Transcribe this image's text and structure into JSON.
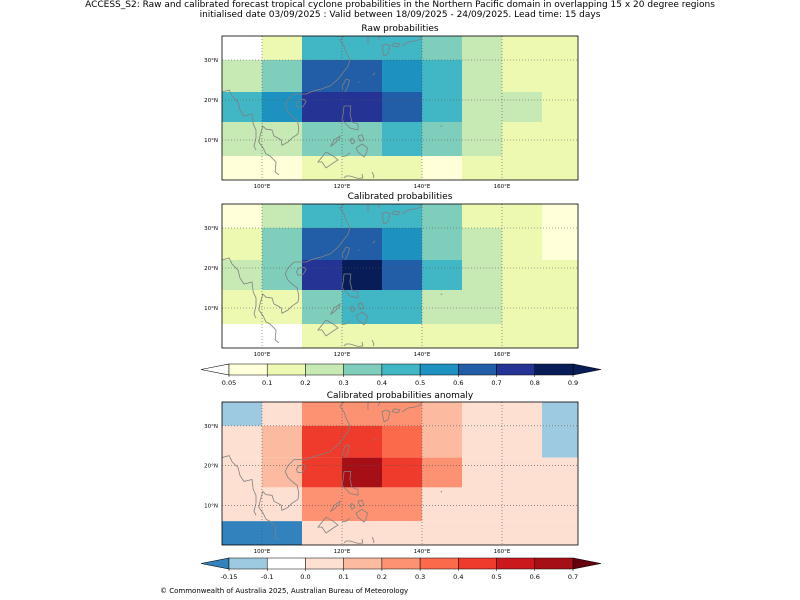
{
  "title_line1": "ACCESS_S2: Raw and calibrated forecast tropical cyclone probabilities in the Northern Pacific domain in overlapping 15 x 20 degree regions",
  "title_line2": "initialised date 03/09/2025 :  Valid between 18/09/2025 - 24/09/2025. Lead time: 15 days",
  "footer": "© Commonwealth of Australia 2025, Australian Bureau of Meteorology",
  "chart_data": [
    {
      "type": "heatmap",
      "title": "Raw probabilities",
      "xlim": [
        90,
        179
      ],
      "ylim": [
        0,
        36
      ],
      "x_ticks": [
        "100°E",
        "120°E",
        "140°E",
        "160°E"
      ],
      "y_ticks": [
        "10°N",
        "20°N",
        "30°N"
      ],
      "cells": [
        {
          "x0": 90,
          "x1": 100,
          "y0": 30,
          "y1": 36,
          "v": 0.0
        },
        {
          "x0": 100,
          "x1": 110,
          "y0": 30,
          "y1": 36,
          "v": 0.15
        },
        {
          "x0": 110,
          "x1": 130,
          "y0": 30,
          "y1": 36,
          "v": 0.45
        },
        {
          "x0": 130,
          "x1": 140,
          "y0": 30,
          "y1": 36,
          "v": 0.45
        },
        {
          "x0": 140,
          "x1": 150,
          "y0": 30,
          "y1": 36,
          "v": 0.35
        },
        {
          "x0": 150,
          "x1": 160,
          "y0": 30,
          "y1": 36,
          "v": 0.25
        },
        {
          "x0": 160,
          "x1": 179,
          "y0": 30,
          "y1": 36,
          "v": 0.15
        },
        {
          "x0": 90,
          "x1": 100,
          "y0": 22,
          "y1": 30,
          "v": 0.25
        },
        {
          "x0": 100,
          "x1": 110,
          "y0": 22,
          "y1": 30,
          "v": 0.35
        },
        {
          "x0": 110,
          "x1": 130,
          "y0": 22,
          "y1": 30,
          "v": 0.65
        },
        {
          "x0": 130,
          "x1": 140,
          "y0": 22,
          "y1": 30,
          "v": 0.55
        },
        {
          "x0": 140,
          "x1": 150,
          "y0": 22,
          "y1": 30,
          "v": 0.45
        },
        {
          "x0": 150,
          "x1": 160,
          "y0": 22,
          "y1": 30,
          "v": 0.25
        },
        {
          "x0": 160,
          "x1": 179,
          "y0": 22,
          "y1": 30,
          "v": 0.15
        },
        {
          "x0": 90,
          "x1": 100,
          "y0": 14.5,
          "y1": 22,
          "v": 0.45
        },
        {
          "x0": 100,
          "x1": 110,
          "y0": 14.5,
          "y1": 22,
          "v": 0.55
        },
        {
          "x0": 110,
          "x1": 130,
          "y0": 14.5,
          "y1": 22,
          "v": 0.75
        },
        {
          "x0": 130,
          "x1": 140,
          "y0": 14.5,
          "y1": 22,
          "v": 0.65
        },
        {
          "x0": 140,
          "x1": 150,
          "y0": 14.5,
          "y1": 22,
          "v": 0.45
        },
        {
          "x0": 150,
          "x1": 160,
          "y0": 14.5,
          "y1": 22,
          "v": 0.25
        },
        {
          "x0": 160,
          "x1": 170,
          "y0": 14.5,
          "y1": 22,
          "v": 0.25
        },
        {
          "x0": 170,
          "x1": 179,
          "y0": 14.5,
          "y1": 22,
          "v": 0.15
        },
        {
          "x0": 90,
          "x1": 110,
          "y0": 6,
          "y1": 14.5,
          "v": 0.25
        },
        {
          "x0": 110,
          "x1": 130,
          "y0": 6,
          "y1": 14.5,
          "v": 0.35
        },
        {
          "x0": 130,
          "x1": 140,
          "y0": 6,
          "y1": 14.5,
          "v": 0.45
        },
        {
          "x0": 140,
          "x1": 150,
          "y0": 6,
          "y1": 14.5,
          "v": 0.35
        },
        {
          "x0": 150,
          "x1": 160,
          "y0": 6,
          "y1": 14.5,
          "v": 0.25
        },
        {
          "x0": 160,
          "x1": 179,
          "y0": 6,
          "y1": 14.5,
          "v": 0.15
        },
        {
          "x0": 90,
          "x1": 110,
          "y0": 0,
          "y1": 6,
          "v": 0.07
        },
        {
          "x0": 110,
          "x1": 140,
          "y0": 0,
          "y1": 6,
          "v": 0.15
        },
        {
          "x0": 140,
          "x1": 150,
          "y0": 0,
          "y1": 6,
          "v": 0.07
        },
        {
          "x0": 150,
          "x1": 179,
          "y0": 0,
          "y1": 6,
          "v": 0.15
        }
      ]
    },
    {
      "type": "heatmap",
      "title": "Calibrated probabilities",
      "xlim": [
        90,
        179
      ],
      "ylim": [
        0,
        36
      ],
      "x_ticks": [
        "100°E",
        "120°E",
        "140°E",
        "160°E"
      ],
      "y_ticks": [
        "10°N",
        "20°N",
        "30°N"
      ],
      "cells": [
        {
          "x0": 90,
          "x1": 100,
          "y0": 30,
          "y1": 36,
          "v": 0.07
        },
        {
          "x0": 100,
          "x1": 110,
          "y0": 30,
          "y1": 36,
          "v": 0.25
        },
        {
          "x0": 110,
          "x1": 140,
          "y0": 30,
          "y1": 36,
          "v": 0.45
        },
        {
          "x0": 140,
          "x1": 150,
          "y0": 30,
          "y1": 36,
          "v": 0.35
        },
        {
          "x0": 150,
          "x1": 170,
          "y0": 30,
          "y1": 36,
          "v": 0.15
        },
        {
          "x0": 170,
          "x1": 179,
          "y0": 30,
          "y1": 36,
          "v": 0.07
        },
        {
          "x0": 90,
          "x1": 100,
          "y0": 22,
          "y1": 30,
          "v": 0.15
        },
        {
          "x0": 100,
          "x1": 110,
          "y0": 22,
          "y1": 30,
          "v": 0.35
        },
        {
          "x0": 110,
          "x1": 130,
          "y0": 22,
          "y1": 30,
          "v": 0.65
        },
        {
          "x0": 130,
          "x1": 140,
          "y0": 22,
          "y1": 30,
          "v": 0.55
        },
        {
          "x0": 140,
          "x1": 150,
          "y0": 22,
          "y1": 30,
          "v": 0.35
        },
        {
          "x0": 150,
          "x1": 160,
          "y0": 22,
          "y1": 30,
          "v": 0.25
        },
        {
          "x0": 160,
          "x1": 170,
          "y0": 22,
          "y1": 30,
          "v": 0.15
        },
        {
          "x0": 170,
          "x1": 179,
          "y0": 22,
          "y1": 30,
          "v": 0.07
        },
        {
          "x0": 90,
          "x1": 100,
          "y0": 14.5,
          "y1": 22,
          "v": 0.25
        },
        {
          "x0": 100,
          "x1": 110,
          "y0": 14.5,
          "y1": 22,
          "v": 0.35
        },
        {
          "x0": 110,
          "x1": 120,
          "y0": 14.5,
          "y1": 22,
          "v": 0.75
        },
        {
          "x0": 120,
          "x1": 130,
          "y0": 14.5,
          "y1": 22,
          "v": 0.85
        },
        {
          "x0": 130,
          "x1": 140,
          "y0": 14.5,
          "y1": 22,
          "v": 0.65
        },
        {
          "x0": 140,
          "x1": 150,
          "y0": 14.5,
          "y1": 22,
          "v": 0.45
        },
        {
          "x0": 150,
          "x1": 160,
          "y0": 14.5,
          "y1": 22,
          "v": 0.25
        },
        {
          "x0": 160,
          "x1": 179,
          "y0": 14.5,
          "y1": 22,
          "v": 0.15
        },
        {
          "x0": 90,
          "x1": 110,
          "y0": 6,
          "y1": 14.5,
          "v": 0.15
        },
        {
          "x0": 110,
          "x1": 120,
          "y0": 6,
          "y1": 14.5,
          "v": 0.35
        },
        {
          "x0": 120,
          "x1": 140,
          "y0": 6,
          "y1": 14.5,
          "v": 0.45
        },
        {
          "x0": 140,
          "x1": 160,
          "y0": 6,
          "y1": 14.5,
          "v": 0.25
        },
        {
          "x0": 160,
          "x1": 179,
          "y0": 6,
          "y1": 14.5,
          "v": 0.15
        },
        {
          "x0": 90,
          "x1": 110,
          "y0": 0,
          "y1": 6,
          "v": 0.0
        },
        {
          "x0": 110,
          "x1": 179,
          "y0": 0,
          "y1": 6,
          "v": 0.15
        }
      ],
      "colorbar": {
        "ticks": [
          "0.05",
          "0.1",
          "0.2",
          "0.3",
          "0.4",
          "0.5",
          "0.6",
          "0.7",
          "0.8",
          "0.9"
        ],
        "colors": [
          "#ffffd9",
          "#edf8b1",
          "#c7e9b4",
          "#7fcdbb",
          "#41b6c4",
          "#1d91c0",
          "#225ea8",
          "#253494",
          "#081d58"
        ],
        "under_color": "#ffffff",
        "over_color": "#081d58"
      }
    },
    {
      "type": "heatmap",
      "title": "Calibrated probabilities anomaly",
      "xlim": [
        90,
        179
      ],
      "ylim": [
        0,
        36
      ],
      "x_ticks": [
        "100°E",
        "120°E",
        "140°E",
        "160°E"
      ],
      "y_ticks": [
        "10°N",
        "20°N",
        "30°N"
      ],
      "cells": [
        {
          "x0": 90,
          "x1": 100,
          "y0": 30,
          "y1": 36,
          "v": -0.12
        },
        {
          "x0": 100,
          "x1": 110,
          "y0": 30,
          "y1": 36,
          "v": 0.05
        },
        {
          "x0": 110,
          "x1": 140,
          "y0": 30,
          "y1": 36,
          "v": 0.25
        },
        {
          "x0": 140,
          "x1": 150,
          "y0": 30,
          "y1": 36,
          "v": 0.15
        },
        {
          "x0": 150,
          "x1": 170,
          "y0": 30,
          "y1": 36,
          "v": 0.0
        },
        {
          "x0": 170,
          "x1": 179,
          "y0": 30,
          "y1": 36,
          "v": -0.12
        },
        {
          "x0": 90,
          "x1": 100,
          "y0": 22,
          "y1": 30,
          "v": 0.0
        },
        {
          "x0": 100,
          "x1": 110,
          "y0": 22,
          "y1": 30,
          "v": 0.15
        },
        {
          "x0": 110,
          "x1": 130,
          "y0": 22,
          "y1": 30,
          "v": 0.45
        },
        {
          "x0": 130,
          "x1": 140,
          "y0": 22,
          "y1": 30,
          "v": 0.35
        },
        {
          "x0": 140,
          "x1": 150,
          "y0": 22,
          "y1": 30,
          "v": 0.15
        },
        {
          "x0": 150,
          "x1": 160,
          "y0": 22,
          "y1": 30,
          "v": 0.05
        },
        {
          "x0": 160,
          "x1": 170,
          "y0": 22,
          "y1": 30,
          "v": 0.0
        },
        {
          "x0": 170,
          "x1": 179,
          "y0": 22,
          "y1": 30,
          "v": -0.12
        },
        {
          "x0": 90,
          "x1": 100,
          "y0": 14.5,
          "y1": 22,
          "v": 0.05
        },
        {
          "x0": 100,
          "x1": 110,
          "y0": 14.5,
          "y1": 22,
          "v": 0.15
        },
        {
          "x0": 110,
          "x1": 120,
          "y0": 14.5,
          "y1": 22,
          "v": 0.45
        },
        {
          "x0": 120,
          "x1": 130,
          "y0": 14.5,
          "y1": 22,
          "v": 0.65
        },
        {
          "x0": 130,
          "x1": 140,
          "y0": 14.5,
          "y1": 22,
          "v": 0.45
        },
        {
          "x0": 140,
          "x1": 150,
          "y0": 14.5,
          "y1": 22,
          "v": 0.25
        },
        {
          "x0": 150,
          "x1": 160,
          "y0": 14.5,
          "y1": 22,
          "v": 0.05
        },
        {
          "x0": 160,
          "x1": 179,
          "y0": 14.5,
          "y1": 22,
          "v": 0.0
        },
        {
          "x0": 90,
          "x1": 110,
          "y0": 6,
          "y1": 14.5,
          "v": 0.0
        },
        {
          "x0": 110,
          "x1": 140,
          "y0": 6,
          "y1": 14.5,
          "v": 0.25
        },
        {
          "x0": 140,
          "x1": 160,
          "y0": 6,
          "y1": 14.5,
          "v": 0.05
        },
        {
          "x0": 160,
          "x1": 179,
          "y0": 6,
          "y1": 14.5,
          "v": 0.0
        },
        {
          "x0": 90,
          "x1": 110,
          "y0": 0,
          "y1": 6,
          "v": -0.2
        },
        {
          "x0": 110,
          "x1": 179,
          "y0": 0,
          "y1": 6,
          "v": 0.0
        }
      ],
      "colorbar": {
        "ticks": [
          "-0.15",
          "-0.1",
          "0.0",
          "0.1",
          "0.2",
          "0.3",
          "0.4",
          "0.5",
          "0.6",
          "0.7"
        ],
        "colors": [
          "#9ecae1",
          "#ffffff",
          "#fee0d2",
          "#fcbba1",
          "#fc9272",
          "#fb6a4a",
          "#ef3b2c",
          "#cb181d",
          "#a50f15"
        ],
        "under_color": "#3182bd",
        "over_color": "#67000d"
      }
    }
  ]
}
